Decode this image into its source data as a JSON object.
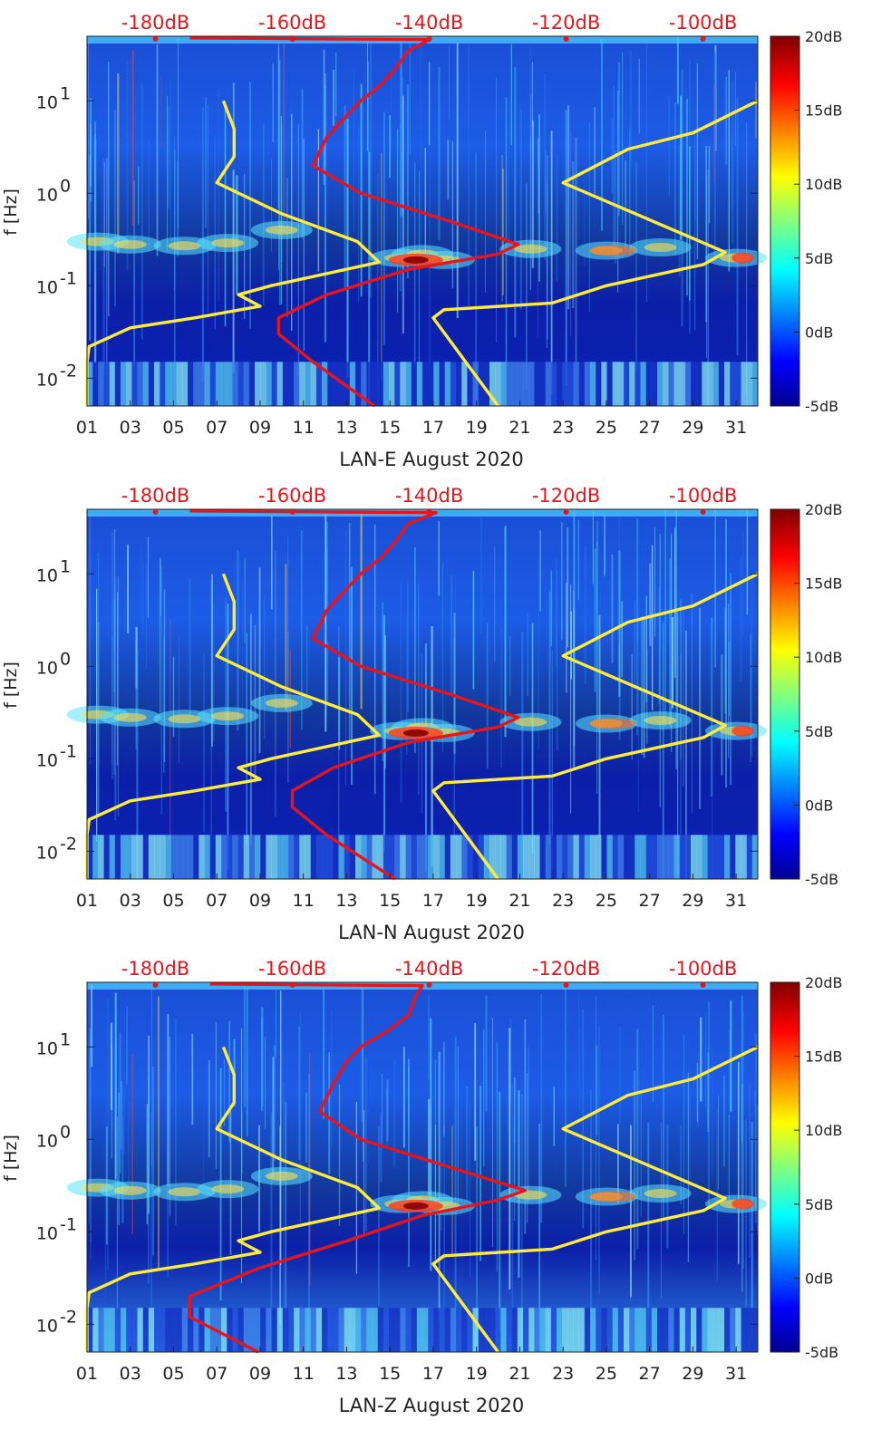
{
  "chart_data": [
    {
      "type": "heatmap",
      "title": "",
      "xlabel": "LAN-E August 2020",
      "ylabel": "f [Hz]",
      "x_ticks": [
        "01",
        "03",
        "05",
        "07",
        "09",
        "11",
        "13",
        "15",
        "17",
        "19",
        "21",
        "23",
        "25",
        "27",
        "29",
        "31"
      ],
      "x_range": [
        1,
        32
      ],
      "y_scale": "log",
      "y_range": [
        0.005,
        50
      ],
      "y_ticks": [
        {
          "value": 0.01,
          "base": "10",
          "exp": "-2"
        },
        {
          "value": 0.1,
          "base": "10",
          "exp": "-1"
        },
        {
          "value": 1,
          "base": "10",
          "exp": "0"
        },
        {
          "value": 10,
          "base": "10",
          "exp": "1"
        }
      ],
      "colorbar": {
        "range_db": [
          -5,
          20
        ],
        "ticks": [
          "20dB",
          "15dB",
          "10dB",
          "5dB",
          "0dB",
          "-5dB"
        ],
        "colormap": "jet"
      },
      "top_axis": {
        "range_db": [
          -190,
          -92
        ],
        "ticks": [
          "-180dB",
          "-160dB",
          "-140dB",
          "-120dB",
          "-100dB"
        ]
      },
      "series": [
        {
          "name": "yellow-left",
          "color": "#ffeb3b",
          "axis": "bottom-date",
          "points": [
            [
              1.0,
              0.005
            ],
            [
              1.0,
              0.015
            ],
            [
              1.1,
              0.022
            ],
            [
              3.0,
              0.035
            ],
            [
              6.0,
              0.045
            ],
            [
              9.0,
              0.06
            ],
            [
              8.0,
              0.08
            ],
            [
              9.5,
              0.1
            ],
            [
              14.5,
              0.18
            ],
            [
              13.5,
              0.3
            ],
            [
              10.0,
              0.6
            ],
            [
              7.0,
              1.3
            ],
            [
              7.8,
              2.5
            ],
            [
              7.8,
              5
            ],
            [
              7.3,
              10
            ]
          ]
        },
        {
          "name": "yellow-right",
          "color": "#ffeb3b",
          "axis": "bottom-date",
          "points": [
            [
              20.0,
              0.005
            ],
            [
              17.0,
              0.045
            ],
            [
              17.5,
              0.055
            ],
            [
              22.5,
              0.065
            ],
            [
              25.0,
              0.1
            ],
            [
              29.5,
              0.17
            ],
            [
              30.5,
              0.23
            ],
            [
              23.0,
              1.3
            ],
            [
              26.0,
              3
            ],
            [
              29.0,
              4.5
            ],
            [
              32.0,
              10
            ]
          ]
        },
        {
          "name": "red-noise-model",
          "color": "#e8141b",
          "axis": "top-db",
          "points": [
            [
              -148,
              0.005
            ],
            [
              -157,
              0.015
            ],
            [
              -162,
              0.03
            ],
            [
              -162,
              0.045
            ],
            [
              -155,
              0.08
            ],
            [
              -143,
              0.15
            ],
            [
              -130,
              0.22
            ],
            [
              -127,
              0.28
            ],
            [
              -137,
              0.5
            ],
            [
              -150,
              1
            ],
            [
              -157,
              2
            ],
            [
              -155,
              4
            ],
            [
              -152,
              7
            ],
            [
              -150,
              10
            ],
            [
              -147,
              15
            ],
            [
              -145,
              22
            ],
            [
              -143,
              35
            ],
            [
              -140,
              46
            ],
            [
              -175,
              48
            ]
          ]
        }
      ]
    },
    {
      "type": "heatmap",
      "title": "",
      "xlabel": "LAN-N August 2020",
      "ylabel": "f [Hz]",
      "x_ticks": [
        "01",
        "03",
        "05",
        "07",
        "09",
        "11",
        "13",
        "15",
        "17",
        "19",
        "21",
        "23",
        "25",
        "27",
        "29",
        "31"
      ],
      "x_range": [
        1,
        32
      ],
      "y_scale": "log",
      "y_range": [
        0.005,
        50
      ],
      "y_ticks": [
        {
          "value": 0.01,
          "base": "10",
          "exp": "-2"
        },
        {
          "value": 0.1,
          "base": "10",
          "exp": "-1"
        },
        {
          "value": 1,
          "base": "10",
          "exp": "0"
        },
        {
          "value": 10,
          "base": "10",
          "exp": "1"
        }
      ],
      "colorbar": {
        "range_db": [
          -5,
          20
        ],
        "ticks": [
          "20dB",
          "15dB",
          "10dB",
          "5dB",
          "0dB",
          "-5dB"
        ],
        "colormap": "jet"
      },
      "top_axis": {
        "range_db": [
          -190,
          -92
        ],
        "ticks": [
          "-180dB",
          "-160dB",
          "-140dB",
          "-120dB",
          "-100dB"
        ]
      },
      "series": [
        {
          "name": "yellow-left",
          "color": "#ffeb3b",
          "axis": "bottom-date",
          "points": [
            [
              1.0,
              0.005
            ],
            [
              1.0,
              0.015
            ],
            [
              1.1,
              0.022
            ],
            [
              3.0,
              0.035
            ],
            [
              6.0,
              0.045
            ],
            [
              9.0,
              0.06
            ],
            [
              8.0,
              0.08
            ],
            [
              9.5,
              0.1
            ],
            [
              14.5,
              0.18
            ],
            [
              13.5,
              0.3
            ],
            [
              10.0,
              0.6
            ],
            [
              7.0,
              1.3
            ],
            [
              7.8,
              2.5
            ],
            [
              7.8,
              5
            ],
            [
              7.3,
              10
            ]
          ]
        },
        {
          "name": "yellow-right",
          "color": "#ffeb3b",
          "axis": "bottom-date",
          "points": [
            [
              20.0,
              0.005
            ],
            [
              17.0,
              0.045
            ],
            [
              17.5,
              0.055
            ],
            [
              22.5,
              0.065
            ],
            [
              25.0,
              0.1
            ],
            [
              29.5,
              0.17
            ],
            [
              30.5,
              0.23
            ],
            [
              23.0,
              1.3
            ],
            [
              26.0,
              3
            ],
            [
              29.0,
              4.5
            ],
            [
              32.0,
              10
            ]
          ]
        },
        {
          "name": "red-noise-model",
          "color": "#e8141b",
          "axis": "top-db",
          "points": [
            [
              -145,
              0.005
            ],
            [
              -155,
              0.015
            ],
            [
              -160,
              0.03
            ],
            [
              -160,
              0.045
            ],
            [
              -154,
              0.08
            ],
            [
              -143,
              0.15
            ],
            [
              -130,
              0.22
            ],
            [
              -127,
              0.28
            ],
            [
              -137,
              0.5
            ],
            [
              -150,
              1
            ],
            [
              -157,
              2
            ],
            [
              -155,
              4
            ],
            [
              -152,
              7
            ],
            [
              -150,
              10
            ],
            [
              -147,
              15
            ],
            [
              -145,
              22
            ],
            [
              -143,
              35
            ],
            [
              -139,
              46
            ],
            [
              -175,
              48
            ]
          ]
        }
      ]
    },
    {
      "type": "heatmap",
      "title": "",
      "xlabel": "LAN-Z August 2020",
      "ylabel": "f [Hz]",
      "x_ticks": [
        "01",
        "03",
        "05",
        "07",
        "09",
        "11",
        "13",
        "15",
        "17",
        "19",
        "21",
        "23",
        "25",
        "27",
        "29",
        "31"
      ],
      "x_range": [
        1,
        32
      ],
      "y_scale": "log",
      "y_range": [
        0.005,
        50
      ],
      "y_ticks": [
        {
          "value": 0.01,
          "base": "10",
          "exp": "-2"
        },
        {
          "value": 0.1,
          "base": "10",
          "exp": "-1"
        },
        {
          "value": 1,
          "base": "10",
          "exp": "0"
        },
        {
          "value": 10,
          "base": "10",
          "exp": "1"
        }
      ],
      "colorbar": {
        "range_db": [
          -5,
          20
        ],
        "ticks": [
          "20dB",
          "15dB",
          "10dB",
          "5dB",
          "0dB",
          "-5dB"
        ],
        "colormap": "jet"
      },
      "top_axis": {
        "range_db": [
          -190,
          -92
        ],
        "ticks": [
          "-180dB",
          "-160dB",
          "-140dB",
          "-120dB",
          "-100dB"
        ]
      },
      "series": [
        {
          "name": "yellow-left",
          "color": "#ffeb3b",
          "axis": "bottom-date",
          "points": [
            [
              1.0,
              0.005
            ],
            [
              1.0,
              0.015
            ],
            [
              1.1,
              0.022
            ],
            [
              3.0,
              0.035
            ],
            [
              6.0,
              0.045
            ],
            [
              9.0,
              0.06
            ],
            [
              8.0,
              0.08
            ],
            [
              9.5,
              0.1
            ],
            [
              14.5,
              0.18
            ],
            [
              13.5,
              0.3
            ],
            [
              10.0,
              0.6
            ],
            [
              7.0,
              1.3
            ],
            [
              7.8,
              2.5
            ],
            [
              7.8,
              5
            ],
            [
              7.3,
              10
            ]
          ]
        },
        {
          "name": "yellow-right",
          "color": "#ffeb3b",
          "axis": "bottom-date",
          "points": [
            [
              20.0,
              0.005
            ],
            [
              17.0,
              0.045
            ],
            [
              17.5,
              0.055
            ],
            [
              22.5,
              0.065
            ],
            [
              25.0,
              0.1
            ],
            [
              29.5,
              0.17
            ],
            [
              30.5,
              0.23
            ],
            [
              23.0,
              1.3
            ],
            [
              26.0,
              3
            ],
            [
              29.0,
              4.5
            ],
            [
              32.0,
              10
            ]
          ]
        },
        {
          "name": "red-noise-model",
          "color": "#e8141b",
          "axis": "top-db",
          "points": [
            [
              -165,
              0.005
            ],
            [
              -175,
              0.012
            ],
            [
              -175,
              0.02
            ],
            [
              -165,
              0.04
            ],
            [
              -152,
              0.08
            ],
            [
              -141,
              0.15
            ],
            [
              -130,
              0.22
            ],
            [
              -126,
              0.28
            ],
            [
              -137,
              0.5
            ],
            [
              -150,
              1
            ],
            [
              -156,
              2
            ],
            [
              -154,
              4
            ],
            [
              -152,
              7
            ],
            [
              -150,
              10
            ],
            [
              -146,
              15
            ],
            [
              -143,
              22
            ],
            [
              -142,
              35
            ],
            [
              -141,
              46
            ],
            [
              -172,
              48
            ]
          ]
        }
      ]
    }
  ]
}
